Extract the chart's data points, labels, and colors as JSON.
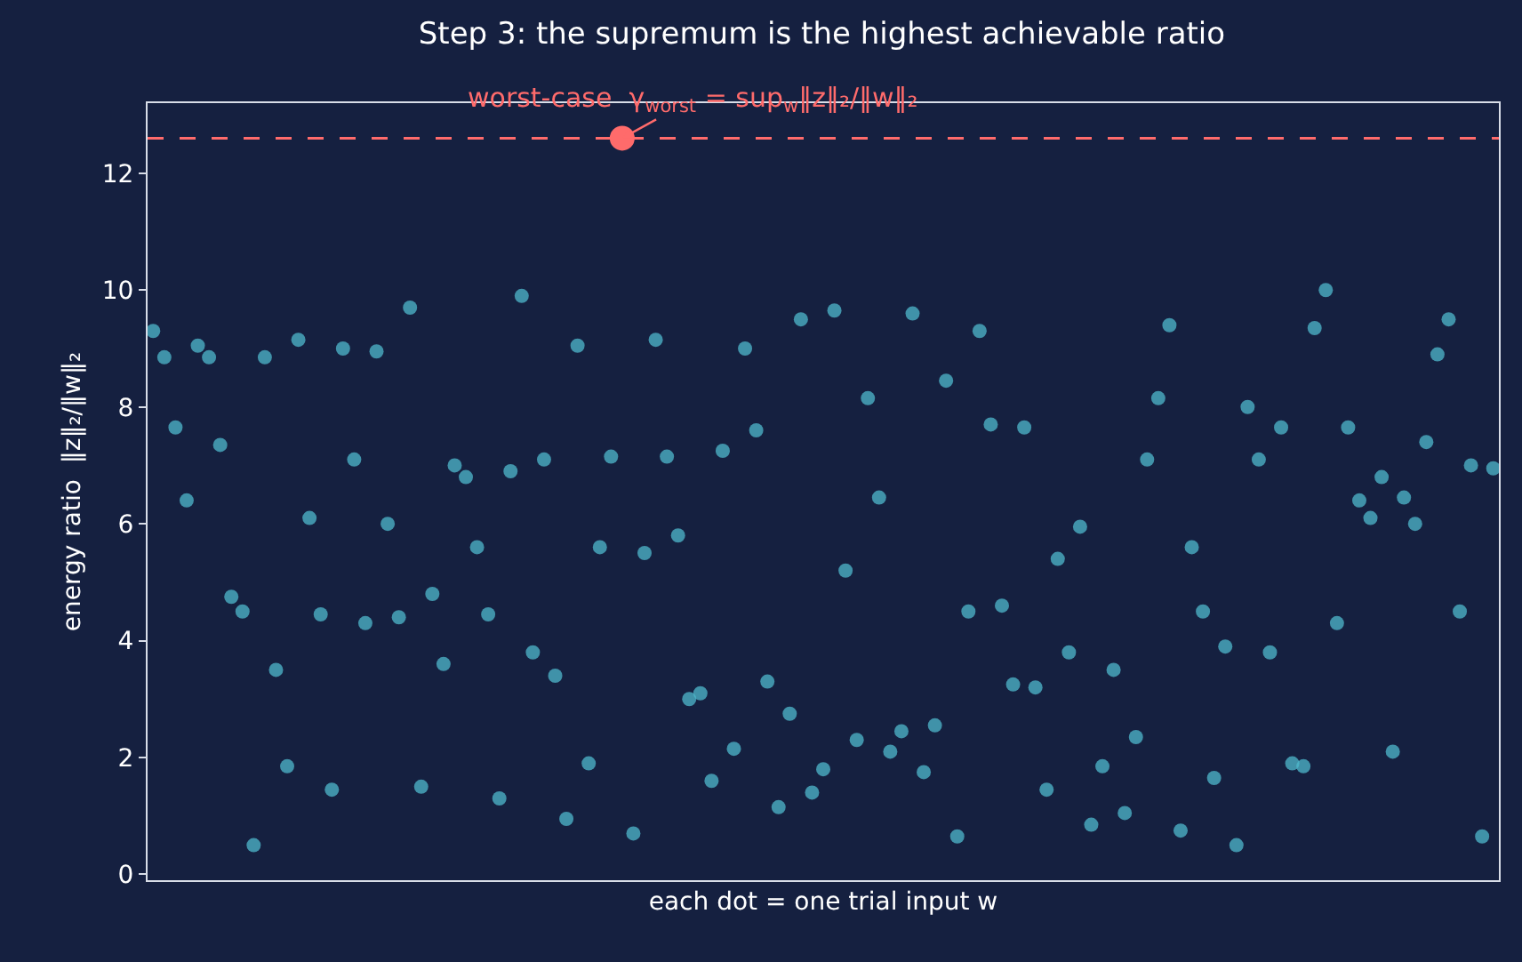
{
  "chart_data": {
    "type": "scatter",
    "title": "Step 3: the supremum is the highest achievable ratio",
    "xlabel": "each dot = one trial input w",
    "ylabel": "energy ratio  ‖z‖₂/‖w‖₂",
    "categories": [
      null,
      null,
      null,
      null,
      null,
      null,
      null,
      null,
      null,
      null,
      null,
      null,
      null,
      null,
      null,
      null,
      null,
      null,
      null,
      null,
      null,
      null,
      null,
      null,
      null,
      null,
      null,
      null,
      null,
      null,
      null,
      null,
      null,
      null,
      null,
      null,
      null,
      null,
      null,
      null,
      null,
      null,
      null,
      null,
      null,
      null,
      null,
      null,
      null,
      null,
      null,
      null,
      null,
      null,
      null,
      null,
      null,
      null,
      null,
      null,
      null,
      null,
      null,
      null,
      null,
      null,
      null,
      null,
      null,
      null,
      null,
      null,
      null,
      null,
      null,
      null,
      null,
      null,
      null,
      null,
      null,
      null,
      null,
      null,
      null,
      null,
      null,
      null,
      null,
      null,
      null,
      null,
      null,
      null,
      null,
      null,
      null,
      null,
      null,
      null,
      null,
      null,
      null,
      null,
      null,
      null,
      null,
      null,
      null,
      null,
      null,
      null,
      null,
      null,
      null,
      null,
      null,
      null,
      null,
      null,
      null
    ],
    "ylim": [
      -0.1,
      13.2
    ],
    "yticks": [
      0,
      2,
      4,
      6,
      8,
      10,
      12
    ],
    "tick_labels": "y",
    "marker": "circle",
    "series": [
      {
        "color": "#4fb8cc",
        "values": [
          9.3,
          8.85,
          7.65,
          6.4,
          9.05,
          8.85,
          7.35,
          4.75,
          4.5,
          0.5,
          8.85,
          3.5,
          1.85,
          9.15,
          6.1,
          4.45,
          1.45,
          9.0,
          7.1,
          4.3,
          8.95,
          6.0,
          4.4,
          9.7,
          1.5,
          4.8,
          3.6,
          7.0,
          6.8,
          5.6,
          4.45,
          1.3,
          6.9,
          9.9,
          3.8,
          7.1,
          3.4,
          0.95,
          9.05,
          1.9,
          5.6,
          7.15,
          null,
          0.7,
          5.5,
          9.15,
          7.15,
          5.8,
          3.0,
          3.1,
          1.6,
          7.25,
          2.15,
          9.0,
          7.6,
          3.3,
          1.15,
          2.75,
          9.5,
          1.4,
          1.8,
          9.65,
          5.2,
          2.3,
          8.15,
          6.45,
          2.1,
          2.45,
          9.6,
          1.75,
          2.55,
          8.45,
          0.65,
          4.5,
          9.3,
          7.7,
          4.6,
          3.25,
          7.65,
          3.2,
          1.45,
          5.4,
          3.8,
          5.95,
          0.85,
          1.85,
          3.5,
          1.05,
          2.35,
          7.1,
          8.15,
          9.4,
          0.75,
          5.6,
          4.5,
          1.65,
          3.9,
          0.5,
          8.0,
          7.1,
          3.8,
          7.65,
          1.9,
          1.85,
          9.35,
          10.0,
          4.3,
          7.65,
          6.4,
          6.1,
          6.8,
          2.1,
          6.45,
          6.0,
          7.4,
          8.9,
          9.5,
          4.5,
          7.0,
          0.65,
          6.95
        ]
      },
      {
        "color": "#ff6b6b",
        "values": [
          null,
          null,
          null,
          null,
          null,
          null,
          null,
          null,
          null,
          null,
          null,
          null,
          null,
          null,
          null,
          null,
          null,
          null,
          null,
          null,
          null,
          null,
          null,
          null,
          null,
          null,
          null,
          null,
          null,
          null,
          null,
          null,
          null,
          null,
          null,
          null,
          null,
          null,
          null,
          null,
          null,
          null,
          12.6,
          null,
          null,
          null,
          null,
          null,
          null,
          null,
          null,
          null,
          null,
          null,
          null,
          null,
          null,
          null,
          null,
          null,
          null,
          null,
          null,
          null,
          null,
          null,
          null,
          null,
          null,
          null,
          null,
          null,
          null,
          null,
          null,
          null,
          null,
          null,
          null,
          null,
          null,
          null,
          null,
          null,
          null,
          null,
          null,
          null,
          null,
          null,
          null,
          null,
          null,
          null,
          null,
          null,
          null,
          null,
          null,
          null,
          null,
          null,
          null,
          null,
          null,
          null,
          null,
          null,
          null,
          null,
          null,
          null,
          null,
          null,
          null,
          null,
          null,
          null,
          null,
          null,
          null
        ]
      }
    ],
    "ref_lines": [
      {
        "axis": "y",
        "value": 12.6,
        "color": "#ff6b6b",
        "line_style": "dashed"
      }
    ],
    "annotations": [
      {
        "text": "worst-case  γ$_{worst}$ = sup$_{w}$‖z‖₂/‖w‖₂",
        "y": 12.6
      }
    ]
  }
}
